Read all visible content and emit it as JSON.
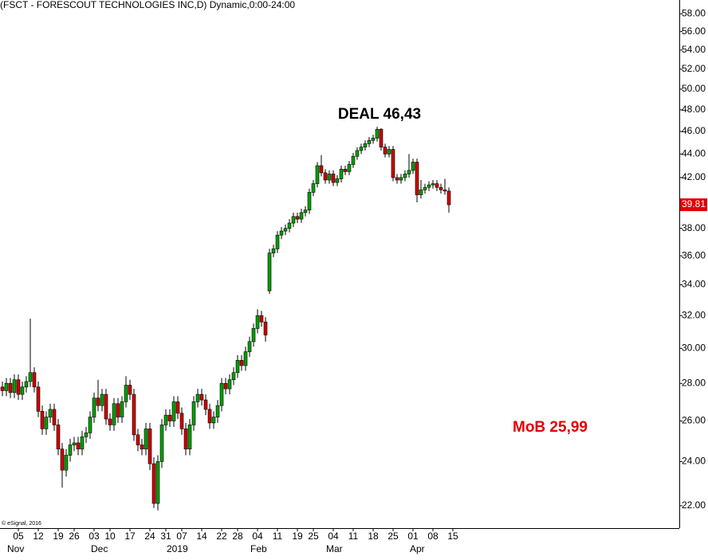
{
  "chart_data": {
    "type": "candlestick",
    "title": "(FSCT - FORESCOUT TECHNOLOGIES INC,D) Dynamic,0:00-24:00",
    "copyright": "© eSignal, 2016",
    "log_scale": true,
    "up_color": "#00a000",
    "down_color": "#d00000",
    "categories": [
      null,
      null,
      null,
      null,
      "05",
      null,
      null,
      null,
      null,
      "12",
      null,
      null,
      null,
      null,
      "19",
      null,
      null,
      null,
      "26",
      null,
      null,
      null,
      null,
      "03",
      null,
      null,
      null,
      "10",
      null,
      null,
      null,
      null,
      "17",
      null,
      null,
      null,
      null,
      "24",
      null,
      null,
      null,
      "31",
      null,
      null,
      null,
      "07",
      null,
      null,
      null,
      null,
      "14",
      null,
      null,
      null,
      null,
      "22",
      null,
      null,
      null,
      "28",
      null,
      null,
      null,
      null,
      "04",
      null,
      null,
      null,
      null,
      "11",
      null,
      null,
      null,
      null,
      "19",
      null,
      null,
      null,
      "25",
      null,
      null,
      null,
      null,
      "04",
      null,
      null,
      null,
      null,
      "11",
      null,
      null,
      null,
      null,
      "18",
      null,
      null,
      null,
      null,
      "25",
      null,
      null,
      null,
      null,
      "01",
      null,
      null,
      null,
      null,
      "08",
      null,
      null,
      null,
      null,
      "15"
    ],
    "month_labels": [
      {
        "category": 2,
        "label": "Nov"
      },
      {
        "category": 23,
        "label": "Dec"
      },
      {
        "category": 42,
        "label": "2019"
      },
      {
        "category": 63,
        "label": "Feb"
      },
      {
        "category": 82,
        "label": "Mar"
      },
      {
        "category": 103,
        "label": "Apr"
      }
    ],
    "open": [
      27.8,
      27.6,
      28.0,
      27.5,
      28.2,
      27.4,
      27.8,
      28.1,
      28.6,
      27.8,
      26.5,
      25.6,
      26.2,
      26.6,
      25.8,
      24.6,
      23.6,
      24.3,
      24.8,
      24.9,
      24.6,
      25.2,
      25.4,
      26.2,
      27.2,
      26.8,
      27.4,
      26.1,
      25.8,
      26.9,
      26.2,
      27.0,
      27.9,
      27.4,
      25.3,
      24.8,
      24.6,
      25.6,
      23.9,
      22.1,
      24.0,
      25.8,
      26.3,
      26.0,
      27.0,
      26.4,
      25.6,
      24.6,
      25.8,
      27.0,
      27.4,
      27.1,
      26.6,
      25.9,
      26.2,
      26.8,
      28.0,
      27.7,
      28.2,
      28.6,
      29.3,
      29.0,
      29.8,
      30.4,
      31.2,
      32.0,
      31.6,
      33.6,
      36.2,
      36.5,
      37.5,
      37.8,
      38.0,
      38.4,
      38.9,
      38.7,
      39.2,
      39.4,
      40.8,
      41.5,
      43.0,
      42.4,
      41.8,
      42.3,
      41.6,
      41.9,
      42.7,
      42.5,
      43.1,
      43.8,
      44.3,
      44.6,
      44.9,
      45.2,
      45.4,
      46.2,
      44.6,
      44.0,
      44.4,
      42.0,
      41.8,
      42.0,
      42.3,
      42.6,
      43.3,
      40.6,
      41.0,
      41.2,
      41.4,
      41.5,
      41.2,
      41.0,
      40.9,
      null
    ],
    "high": [
      28.1,
      28.3,
      28.3,
      28.5,
      28.5,
      28.1,
      28.4,
      31.8,
      28.9,
      28.1,
      26.8,
      26.5,
      26.9,
      26.9,
      26.1,
      24.9,
      24.6,
      25.1,
      25.2,
      25.2,
      25.5,
      25.7,
      26.5,
      27.5,
      28.2,
      27.7,
      27.7,
      26.4,
      27.2,
      27.2,
      27.3,
      28.4,
      28.2,
      27.7,
      25.6,
      25.1,
      25.9,
      25.9,
      24.2,
      24.3,
      26.1,
      26.6,
      26.6,
      27.3,
      27.3,
      26.7,
      25.9,
      26.1,
      27.3,
      27.7,
      27.7,
      27.4,
      26.9,
      26.5,
      27.1,
      28.3,
      28.3,
      28.5,
      28.9,
      29.6,
      29.6,
      30.1,
      30.7,
      31.5,
      32.4,
      32.3,
      31.9,
      36.5,
      36.8,
      37.8,
      38.1,
      38.3,
      38.7,
      39.2,
      39.2,
      39.5,
      39.7,
      41.1,
      41.8,
      43.3,
      43.9,
      42.7,
      42.6,
      42.6,
      42.2,
      43.0,
      43.0,
      43.4,
      44.1,
      44.6,
      44.9,
      45.2,
      45.5,
      45.7,
      46.43,
      46.3,
      44.9,
      44.7,
      44.7,
      42.3,
      42.3,
      42.6,
      44.0,
      43.6,
      43.6,
      41.8,
      41.5,
      41.7,
      41.8,
      41.8,
      41.5,
      41.9,
      41.2,
      null
    ],
    "low": [
      27.3,
      27.3,
      27.2,
      27.2,
      27.1,
      27.1,
      27.5,
      27.8,
      27.5,
      26.2,
      25.3,
      25.3,
      25.9,
      25.5,
      24.3,
      22.8,
      23.3,
      24.0,
      24.5,
      24.3,
      24.3,
      24.9,
      25.1,
      25.9,
      26.5,
      26.5,
      25.8,
      25.5,
      25.5,
      25.9,
      25.9,
      26.7,
      27.1,
      25.0,
      24.5,
      24.3,
      24.3,
      23.6,
      21.9,
      21.8,
      23.7,
      25.5,
      25.7,
      25.7,
      26.1,
      25.3,
      24.3,
      24.3,
      25.5,
      26.7,
      26.8,
      26.3,
      25.6,
      25.6,
      25.9,
      26.5,
      27.4,
      27.4,
      27.9,
      28.3,
      28.7,
      28.7,
      29.5,
      30.1,
      30.9,
      31.3,
      30.4,
      33.4,
      35.9,
      36.2,
      37.2,
      37.5,
      37.7,
      38.1,
      38.4,
      38.4,
      38.9,
      39.1,
      40.5,
      41.2,
      42.1,
      41.5,
      41.5,
      41.3,
      41.3,
      41.6,
      42.2,
      42.2,
      42.8,
      43.5,
      44.0,
      44.3,
      44.6,
      44.9,
      45.1,
      44.3,
      43.7,
      43.7,
      41.7,
      41.5,
      41.5,
      41.7,
      42.0,
      42.3,
      40.0,
      40.3,
      40.7,
      40.9,
      41.1,
      40.9,
      40.7,
      40.6,
      39.2,
      null
    ],
    "close": [
      27.6,
      28.0,
      27.5,
      28.2,
      27.4,
      27.8,
      28.1,
      28.6,
      27.8,
      26.5,
      25.6,
      26.2,
      26.6,
      25.8,
      24.6,
      23.6,
      24.3,
      24.8,
      24.9,
      24.6,
      25.2,
      25.4,
      26.2,
      27.2,
      26.8,
      27.4,
      26.1,
      25.8,
      26.9,
      26.2,
      27.0,
      27.9,
      27.4,
      25.3,
      24.8,
      24.6,
      25.6,
      23.9,
      22.1,
      24.0,
      25.8,
      26.3,
      26.0,
      27.0,
      26.4,
      25.6,
      24.6,
      25.8,
      27.0,
      27.4,
      27.1,
      26.6,
      25.9,
      26.2,
      26.8,
      28.0,
      27.7,
      28.2,
      28.6,
      29.3,
      29.0,
      29.8,
      30.4,
      31.2,
      32.0,
      31.6,
      30.8,
      36.2,
      36.5,
      37.5,
      37.8,
      38.0,
      38.4,
      38.9,
      38.7,
      39.2,
      39.4,
      40.8,
      41.5,
      43.0,
      42.4,
      41.8,
      42.3,
      41.6,
      41.9,
      42.7,
      42.5,
      43.1,
      43.8,
      44.3,
      44.6,
      44.9,
      45.2,
      45.4,
      46.2,
      44.6,
      44.0,
      44.4,
      42.0,
      41.8,
      42.0,
      42.3,
      42.6,
      43.3,
      40.6,
      41.0,
      41.2,
      41.4,
      41.5,
      41.2,
      41.0,
      40.9,
      39.81,
      null
    ],
    "ylim": [
      21.05,
      59.6
    ],
    "yticks": [
      {
        "value": 22,
        "label": "22.00"
      },
      {
        "value": 24,
        "label": "24.00"
      },
      {
        "value": 26,
        "label": "26.00"
      },
      {
        "value": 28,
        "label": "28.00"
      },
      {
        "value": 30,
        "label": "30.00"
      },
      {
        "value": 32,
        "label": "32.00"
      },
      {
        "value": 34,
        "label": "34.00"
      },
      {
        "value": 36,
        "label": "36.00"
      },
      {
        "value": 38,
        "label": "38.00"
      },
      {
        "value": 42,
        "label": "42.00"
      },
      {
        "value": 44,
        "label": "44.00"
      },
      {
        "value": 46,
        "label": "46.00"
      },
      {
        "value": 48,
        "label": "48.00"
      },
      {
        "value": 50,
        "label": "50.00"
      },
      {
        "value": 52,
        "label": "52.00"
      },
      {
        "value": 54,
        "label": "54.00"
      },
      {
        "value": 56,
        "label": "56.00"
      },
      {
        "value": 58,
        "label": "58.00"
      }
    ],
    "annotations": [
      {
        "text": "DEAL 46,43",
        "color": "#000000"
      },
      {
        "text": "MoB 25,99",
        "color": "#e00000"
      }
    ]
  }
}
